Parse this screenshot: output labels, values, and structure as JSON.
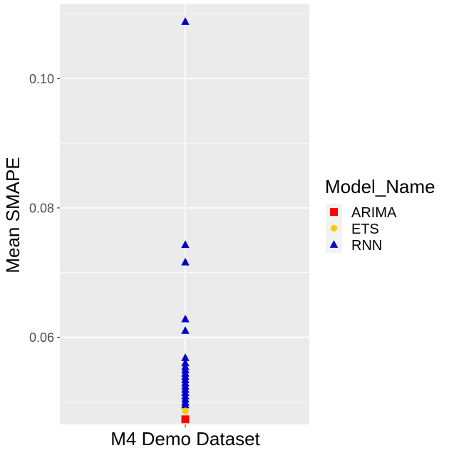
{
  "chart_data": {
    "type": "scatter",
    "title": "",
    "xlabel": "",
    "ylabel": "Mean SMAPE",
    "categories": [
      "M4 Demo Dataset"
    ],
    "ylim": [
      0.0465,
      0.1115
    ],
    "y_ticks": [
      0.06,
      0.08,
      0.1
    ],
    "y_tick_labels": [
      "0.06",
      "0.08",
      "0.10"
    ],
    "grid": true,
    "panel_background": "#EBEBEB",
    "legend": {
      "title": "Model_Name",
      "position": "right",
      "entries": [
        "ARIMA",
        "ETS",
        "RNN"
      ]
    },
    "series": [
      {
        "name": "ARIMA",
        "color": "#FF0000",
        "shape": "square",
        "points": [
          {
            "x": "M4 Demo Dataset",
            "y": 0.0473
          }
        ]
      },
      {
        "name": "ETS",
        "color": "#FFCC00",
        "shape": "circle",
        "points": [
          {
            "x": "M4 Demo Dataset",
            "y": 0.0486
          }
        ]
      },
      {
        "name": "RNN",
        "color": "#0000CC",
        "shape": "triangle",
        "points": [
          {
            "x": "M4 Demo Dataset",
            "y": 0.1088
          },
          {
            "x": "M4 Demo Dataset",
            "y": 0.0743
          },
          {
            "x": "M4 Demo Dataset",
            "y": 0.0716
          },
          {
            "x": "M4 Demo Dataset",
            "y": 0.0628
          },
          {
            "x": "M4 Demo Dataset",
            "y": 0.061
          },
          {
            "x": "M4 Demo Dataset",
            "y": 0.0568
          },
          {
            "x": "M4 Demo Dataset",
            "y": 0.056
          },
          {
            "x": "M4 Demo Dataset",
            "y": 0.0554
          },
          {
            "x": "M4 Demo Dataset",
            "y": 0.0549
          },
          {
            "x": "M4 Demo Dataset",
            "y": 0.0544
          },
          {
            "x": "M4 Demo Dataset",
            "y": 0.0539
          },
          {
            "x": "M4 Demo Dataset",
            "y": 0.0534
          },
          {
            "x": "M4 Demo Dataset",
            "y": 0.0529
          },
          {
            "x": "M4 Demo Dataset",
            "y": 0.0524
          },
          {
            "x": "M4 Demo Dataset",
            "y": 0.0519
          },
          {
            "x": "M4 Demo Dataset",
            "y": 0.0514
          },
          {
            "x": "M4 Demo Dataset",
            "y": 0.0509
          },
          {
            "x": "M4 Demo Dataset",
            "y": 0.0504
          },
          {
            "x": "M4 Demo Dataset",
            "y": 0.0499
          },
          {
            "x": "M4 Demo Dataset",
            "y": 0.0495
          }
        ]
      }
    ]
  }
}
